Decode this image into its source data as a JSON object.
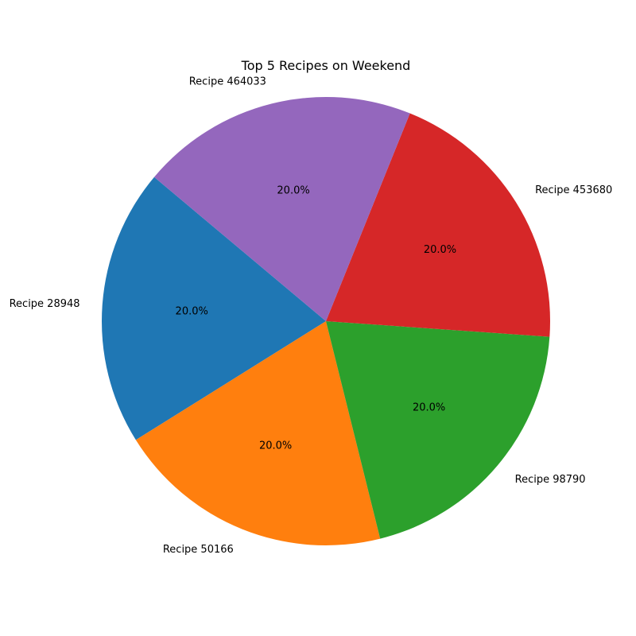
{
  "chart_data": {
    "type": "pie",
    "title": "Top 5 Recipes on Weekend",
    "slices": [
      {
        "label": "Recipe 28948",
        "value": 20.0,
        "pct_label": "20.0%",
        "color": "#1f77b4"
      },
      {
        "label": "Recipe 50166",
        "value": 20.0,
        "pct_label": "20.0%",
        "color": "#ff7f0e"
      },
      {
        "label": "Recipe 98790",
        "value": 20.0,
        "pct_label": "20.0%",
        "color": "#2ca02c"
      },
      {
        "label": "Recipe 453680",
        "value": 20.0,
        "pct_label": "20.0%",
        "color": "#d62728"
      },
      {
        "label": "Recipe 464033",
        "value": 20.0,
        "pct_label": "20.0%",
        "color": "#9467bd"
      }
    ]
  }
}
